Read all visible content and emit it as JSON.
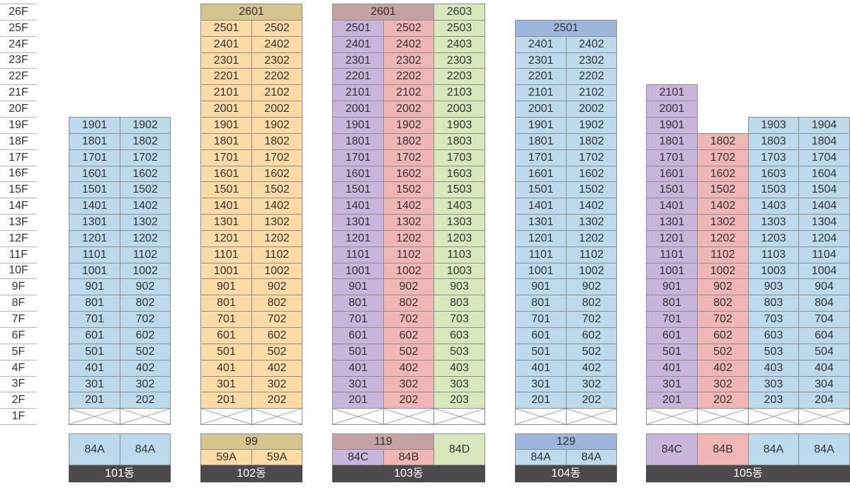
{
  "floor_labels": [
    "26F",
    "25F",
    "24F",
    "23F",
    "22F",
    "21F",
    "20F",
    "19F",
    "18F",
    "17F",
    "16F",
    "15F",
    "14F",
    "13F",
    "12F",
    "11F",
    "10F",
    "9F",
    "8F",
    "7F",
    "6F",
    "5F",
    "4F",
    "3F",
    "2F",
    "1F"
  ],
  "buildings": [
    {
      "name": "101동",
      "piloti": true,
      "columns": [
        {
          "color": "#bcdaeb",
          "units": [
            "1901",
            "1801",
            "1701",
            "1601",
            "1501",
            "1401",
            "1301",
            "1201",
            "1101",
            "1001",
            "901",
            "801",
            "701",
            "601",
            "501",
            "401",
            "301",
            "201"
          ]
        },
        {
          "color": "#bcdaeb",
          "units": [
            "1902",
            "1802",
            "1702",
            "1602",
            "1502",
            "1402",
            "1302",
            "1202",
            "1102",
            "1002",
            "902",
            "802",
            "702",
            "602",
            "502",
            "402",
            "302",
            "202"
          ]
        }
      ],
      "merged_top": [],
      "type_header": null,
      "types": [
        {
          "label": "84A",
          "color": "#bcdaeb"
        },
        {
          "label": "84A",
          "color": "#bcdaeb"
        }
      ]
    },
    {
      "name": "102동",
      "piloti": true,
      "columns": [
        {
          "color": "#fcdba7",
          "units": [
            "2501",
            "2401",
            "2301",
            "2201",
            "2101",
            "2001",
            "1901",
            "1801",
            "1701",
            "1601",
            "1501",
            "1401",
            "1301",
            "1201",
            "1101",
            "1001",
            "901",
            "801",
            "701",
            "601",
            "501",
            "401",
            "301",
            "201"
          ]
        },
        {
          "color": "#fcdba7",
          "units": [
            "2502",
            "2402",
            "2302",
            "2202",
            "2102",
            "2002",
            "1902",
            "1802",
            "1702",
            "1602",
            "1502",
            "1402",
            "1302",
            "1202",
            "1102",
            "1002",
            "902",
            "802",
            "702",
            "602",
            "502",
            "402",
            "302",
            "202"
          ]
        }
      ],
      "merged_top": [
        {
          "unit": "2601",
          "color": "#d5c48d",
          "columns": [
            0,
            1
          ]
        }
      ],
      "type_header": {
        "label": "99",
        "color": "#d5c48d",
        "columns": [
          0,
          1
        ]
      },
      "types": [
        {
          "label": "59A",
          "color": "#fcdba7"
        },
        {
          "label": "59A",
          "color": "#fcdba7"
        }
      ]
    },
    {
      "name": "103동",
      "piloti": true,
      "columns": [
        {
          "color": "#c9b4db",
          "units": [
            "2501",
            "2401",
            "2301",
            "2201",
            "2101",
            "2001",
            "1901",
            "1801",
            "1701",
            "1601",
            "1501",
            "1401",
            "1301",
            "1201",
            "1101",
            "1001",
            "901",
            "801",
            "701",
            "601",
            "501",
            "401",
            "301",
            "201"
          ]
        },
        {
          "color": "#f0b5b5",
          "units": [
            "2502",
            "2402",
            "2302",
            "2202",
            "2102",
            "2002",
            "1902",
            "1802",
            "1702",
            "1602",
            "1502",
            "1402",
            "1302",
            "1202",
            "1102",
            "1002",
            "902",
            "802",
            "702",
            "602",
            "502",
            "402",
            "302",
            "202"
          ]
        },
        {
          "color": "#d9e7bd",
          "units": [
            "2603",
            "2503",
            "2403",
            "2303",
            "2203",
            "2103",
            "2003",
            "1903",
            "1803",
            "1703",
            "1603",
            "1503",
            "1403",
            "1303",
            "1203",
            "1103",
            "1003",
            "903",
            "803",
            "703",
            "603",
            "503",
            "403",
            "303",
            "203"
          ]
        }
      ],
      "merged_top": [
        {
          "unit": "2601",
          "color": "#c4a2a1",
          "columns": [
            0,
            1
          ]
        }
      ],
      "type_header": {
        "label": "119",
        "color": "#c4a2a1",
        "columns": [
          0,
          1
        ]
      },
      "types": [
        {
          "label": "84C",
          "color": "#c9b4db"
        },
        {
          "label": "84B",
          "color": "#f0b5b5"
        },
        {
          "label": "84D",
          "color": "#d9e7bd"
        }
      ]
    },
    {
      "name": "104동",
      "piloti": true,
      "columns": [
        {
          "color": "#bcdaeb",
          "units": [
            "2401",
            "2301",
            "2201",
            "2101",
            "2001",
            "1901",
            "1801",
            "1701",
            "1601",
            "1501",
            "1401",
            "1301",
            "1201",
            "1101",
            "1001",
            "901",
            "801",
            "701",
            "601",
            "501",
            "401",
            "301",
            "201"
          ]
        },
        {
          "color": "#bcdaeb",
          "units": [
            "2402",
            "2302",
            "2202",
            "2102",
            "2002",
            "1902",
            "1802",
            "1702",
            "1602",
            "1502",
            "1402",
            "1302",
            "1202",
            "1102",
            "1002",
            "902",
            "802",
            "702",
            "602",
            "502",
            "402",
            "302",
            "202"
          ]
        }
      ],
      "merged_top": [
        {
          "unit": "2501",
          "color": "#9eb6dd",
          "columns": [
            0,
            1
          ]
        }
      ],
      "type_header": {
        "label": "129",
        "color": "#9eb6dd",
        "columns": [
          0,
          1
        ]
      },
      "types": [
        {
          "label": "84A",
          "color": "#bcdaeb"
        },
        {
          "label": "84A",
          "color": "#bcdaeb"
        }
      ]
    },
    {
      "name": "105동",
      "piloti": true,
      "columns": [
        {
          "color": "#c9b4db",
          "units": [
            "2101",
            "2001",
            "1901",
            "1801",
            "1701",
            "1601",
            "1501",
            "1401",
            "1301",
            "1201",
            "1101",
            "1001",
            "901",
            "801",
            "701",
            "601",
            "501",
            "401",
            "301",
            "201"
          ]
        },
        {
          "color": "#f0b5b5",
          "units": [
            "1802",
            "1702",
            "1602",
            "1502",
            "1402",
            "1302",
            "1202",
            "1102",
            "1002",
            "902",
            "802",
            "702",
            "602",
            "502",
            "402",
            "302",
            "202"
          ]
        },
        {
          "color": "#bcdaeb",
          "units": [
            "1903",
            "1803",
            "1703",
            "1603",
            "1503",
            "1403",
            "1303",
            "1203",
            "1103",
            "1003",
            "903",
            "803",
            "703",
            "603",
            "503",
            "403",
            "303",
            "203"
          ]
        },
        {
          "color": "#bcdaeb",
          "units": [
            "1904",
            "1804",
            "1704",
            "1604",
            "1504",
            "1404",
            "1304",
            "1204",
            "1104",
            "1004",
            "904",
            "804",
            "704",
            "604",
            "504",
            "404",
            "304",
            "204"
          ]
        }
      ],
      "merged_top": [],
      "type_header": null,
      "types": [
        {
          "label": "84C",
          "color": "#c9b4db"
        },
        {
          "label": "84B",
          "color": "#f0b5b5"
        },
        {
          "label": "84A",
          "color": "#bcdaeb"
        },
        {
          "label": "84A",
          "color": "#bcdaeb"
        }
      ]
    }
  ]
}
